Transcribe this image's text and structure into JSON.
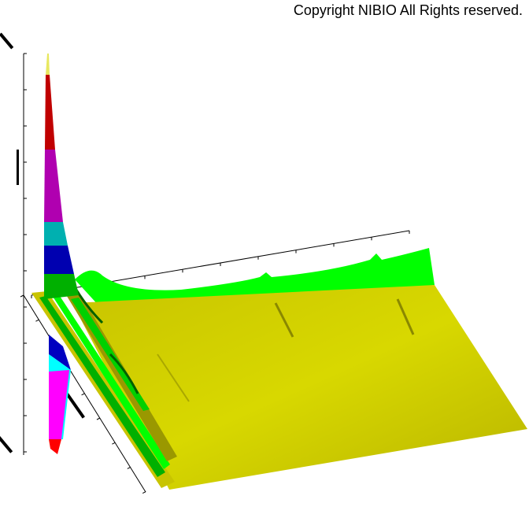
{
  "copyright": "Copyright NIBIO All Rights reserved.",
  "chart_data": {
    "type": "3d-surface",
    "title": "",
    "grid": false,
    "surface_color": "#d4d400",
    "ridge_color": "#00ff00",
    "peak_colors": [
      "#e8e860",
      "#c00000",
      "#b000b0",
      "#00b0b0",
      "#0000b0",
      "#00b000"
    ],
    "lower_peak_colors": [
      "#0000c0",
      "#00ffff",
      "#ff00ff",
      "#ff0000"
    ]
  }
}
